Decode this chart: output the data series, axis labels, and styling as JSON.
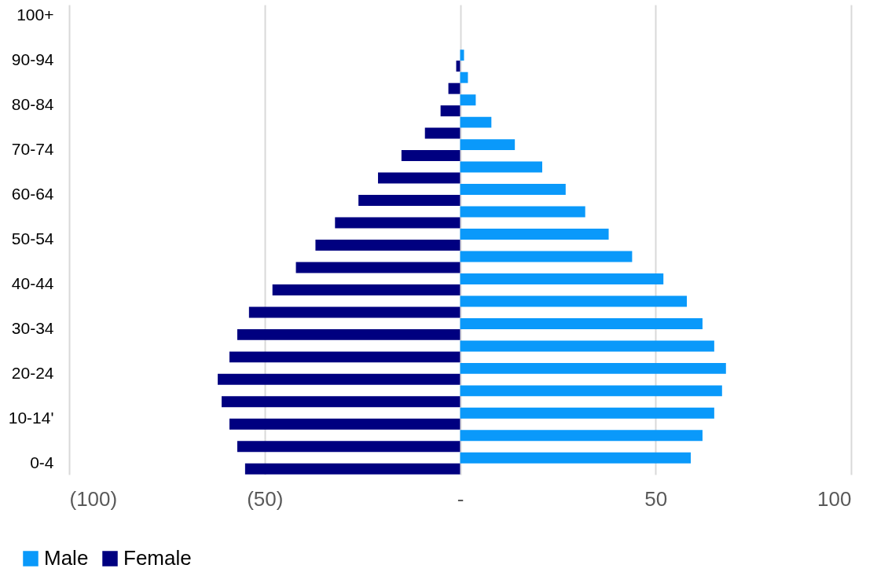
{
  "chart_data": {
    "type": "bar",
    "orientation": "horizontal",
    "categories": [
      "100+",
      null,
      "90-94",
      null,
      "80-84",
      null,
      "70-74",
      null,
      "60-64",
      null,
      "50-54",
      null,
      "40-44",
      null,
      "30-34",
      null,
      "20-24",
      null,
      "10-14'",
      null,
      "0-4"
    ],
    "series": [
      {
        "name": "Male",
        "color": "#0a99fa",
        "values": [
          0,
          0,
          1,
          2,
          4,
          8,
          14,
          21,
          27,
          32,
          38,
          44,
          52,
          58,
          62,
          65,
          68,
          67,
          65,
          62,
          59
        ]
      },
      {
        "name": "Female",
        "color": "#000080",
        "values": [
          0,
          0,
          -1,
          -3,
          -5,
          -9,
          -15,
          -21,
          -26,
          -32,
          -37,
          -42,
          -48,
          -54,
          -57,
          -59,
          -62,
          -61,
          -59,
          -57,
          -55
        ]
      }
    ],
    "xlim": [
      -100,
      100
    ],
    "xticks": [
      {
        "value": -100,
        "label": "(100)"
      },
      {
        "value": -50,
        "label": "(50)"
      },
      {
        "value": 0,
        "label": "-"
      },
      50,
      100
    ],
    "grid": "x",
    "legend": "bottom left"
  }
}
